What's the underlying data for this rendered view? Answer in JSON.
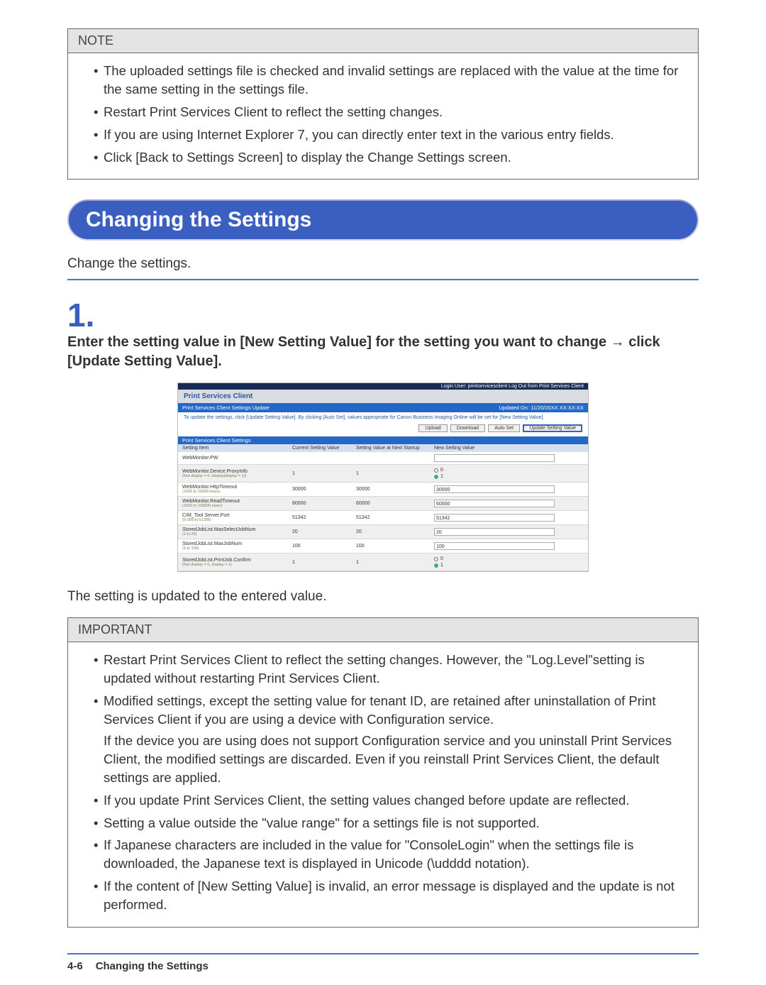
{
  "noteBox": {
    "title": "NOTE",
    "items": [
      "The uploaded settings file is checked and invalid settings are replaced with the value at the time for the same setting in the settings file.",
      "Restart Print Services Client to reflect the setting changes.",
      "If you are using Internet Explorer 7, you can directly enter text in the various entry fields.",
      "Click [Back to Settings Screen] to display the Change Settings screen."
    ]
  },
  "heading": "Changing the Settings",
  "intro": "Change the settings.",
  "step": {
    "number": "1.",
    "text": "Enter the setting value in [New Setting Value] for the setting you want to change → click [Update Setting Value]."
  },
  "screenshot": {
    "topbar": "Login User: printservicesclient   Log Out from Print Services Client",
    "brand": "Print Services Client",
    "sub_left": "Print Services Client Settings Update",
    "sub_right": "Updated On: 11/20/20XX XX:XX:XX",
    "desc": "To update the settings, click [Update Setting Value]. By clicking [Auto Set], values appropriate for Canon Business Imaging Online will be set for [New Setting Value].",
    "buttons": {
      "upload": "Upload",
      "download": "Download",
      "autoset": "Auto Set",
      "update": "Update Setting Value"
    },
    "section": "Print Services Client Settings",
    "thead": {
      "c1": "Setting Item",
      "c2": "Current Setting Value",
      "c3": "Setting Value at Next Startup",
      "c4": "New Setting Value"
    },
    "rows": [
      {
        "name": "WebMonitor.PW",
        "hint": "",
        "cur": "",
        "next": "",
        "val": "",
        "type": "input"
      },
      {
        "name": "WebMonitor.Device.ProxyInfo",
        "hint": "(Not display = 0, display(display = 1))",
        "cur": "1",
        "next": "1",
        "val": "radio"
      },
      {
        "name": "WebMonitor.HttpTimeout",
        "hint": "(1000 to 10000 msec)",
        "cur": "30000",
        "next": "30000",
        "val": "30000",
        "type": "input"
      },
      {
        "name": "WebMonitor.ReadTimeout",
        "hint": "(1000 to 100000 msec)",
        "cur": "60000",
        "next": "60000",
        "val": "60000",
        "type": "input"
      },
      {
        "name": "CIM_Tool Server.Port",
        "hint": "(0-255 to 51386)",
        "cur": "51342",
        "next": "51342",
        "val": "51342",
        "type": "input"
      },
      {
        "name": "StoredJobList.MaxSelectJobNum",
        "hint": "(1 to 20)",
        "cur": "20",
        "next": "20",
        "val": "20",
        "type": "input"
      },
      {
        "name": "StoredJobList.MaxJobNum",
        "hint": "(1 to 100)",
        "cur": "100",
        "next": "100",
        "val": "100",
        "type": "input"
      },
      {
        "name": "StoredJobList.PrintJob.Confirm",
        "hint": "(Not display = 0, display = 1)",
        "cur": "1",
        "next": "1",
        "val": "radio"
      }
    ]
  },
  "result": "The setting is updated to the entered value.",
  "importantBox": {
    "title": "IMPORTANT",
    "items": [
      "Restart Print Services Client to reflect the setting changes. However, the \"Log.Level\"setting is updated without restarting Print Services Client.",
      "Modified settings, except the setting value for tenant ID, are retained after uninstallation of Print Services Client if you are using a device with Configuration service.\nIf the device you are using does not support Configuration service and you uninstall Print Services Client, the modified settings are discarded. Even if you reinstall Print Services Client, the default settings are applied.",
      "If you update Print Services Client, the setting values changed before update are reflected.",
      "Setting a value outside the \"value range\" for a settings file is not supported.",
      "If Japanese characters are included in the value for \"ConsoleLogin\" when the settings file is downloaded, the Japanese text is displayed in Unicode (\\udddd notation).",
      "If the content of [New Setting Value] is invalid, an error message is displayed and the update is not performed."
    ]
  },
  "footer": {
    "page": "4-6",
    "title": "Changing the Settings"
  }
}
